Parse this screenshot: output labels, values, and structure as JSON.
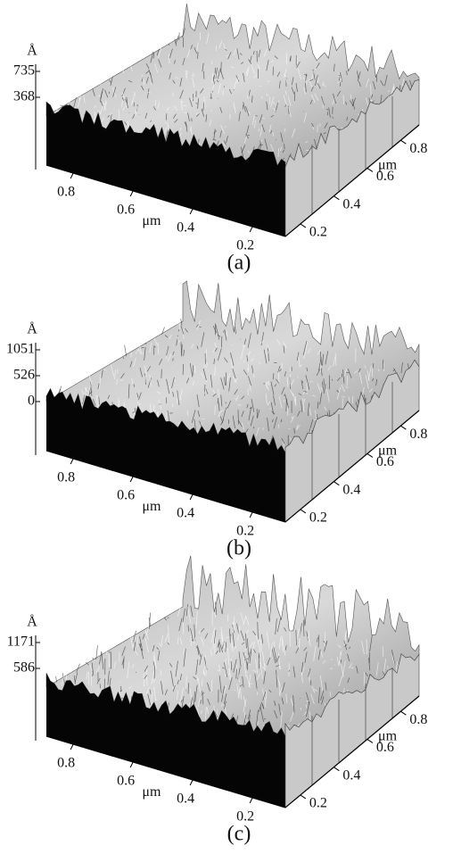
{
  "panels": [
    {
      "caption": "(a)",
      "z_unit": "Å",
      "z_ticks": [
        "735",
        "368"
      ],
      "x_ticks": [
        "0.8",
        "0.6",
        "0.4",
        "0.2"
      ],
      "x_unit": "μm",
      "y_ticks": [
        "0.2",
        "0.4",
        "0.6",
        "0.8"
      ],
      "y_unit": "μm"
    },
    {
      "caption": "(b)",
      "z_unit": "Å",
      "z_ticks": [
        "1051",
        "526",
        "0"
      ],
      "x_ticks": [
        "0.8",
        "0.6",
        "0.4",
        "0.2"
      ],
      "x_unit": "μm",
      "y_ticks": [
        "0.2",
        "0.4",
        "0.6",
        "0.8"
      ],
      "y_unit": "μm"
    },
    {
      "caption": "(c)",
      "z_unit": "Å",
      "z_ticks": [
        "1171",
        "586"
      ],
      "x_ticks": [
        "0.8",
        "0.6",
        "0.4",
        "0.2"
      ],
      "x_unit": "μm",
      "y_ticks": [
        "0.2",
        "0.4",
        "0.6",
        "0.8"
      ],
      "y_unit": "μm"
    }
  ]
}
